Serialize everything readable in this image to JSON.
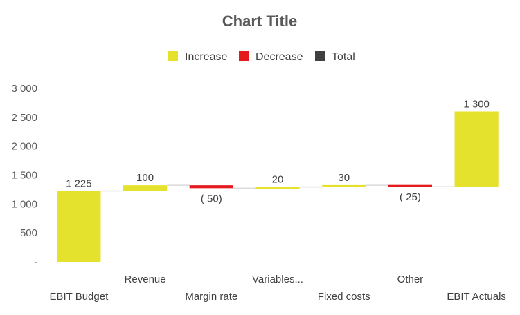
{
  "chart_data": {
    "type": "waterfall",
    "title": "Chart Title",
    "legend": [
      {
        "label": "Increase",
        "color": "#E5E22E"
      },
      {
        "label": "Decrease",
        "color": "#E41A1C"
      },
      {
        "label": "Total",
        "color": "#404040"
      }
    ],
    "legend_position": "top",
    "ylim": [
      0,
      3000
    ],
    "yticks": [
      {
        "value": 0,
        "label": "-"
      },
      {
        "value": 500,
        "label": "500"
      },
      {
        "value": 1000,
        "label": "1 000"
      },
      {
        "value": 1500,
        "label": "1 500"
      },
      {
        "value": 2000,
        "label": "2 000"
      },
      {
        "value": 2500,
        "label": "2 500"
      },
      {
        "value": 3000,
        "label": "3 000"
      }
    ],
    "grid": false,
    "categories": [
      "EBIT Budget",
      "Revenue",
      "Margin rate",
      "Variables...",
      "Fixed costs",
      "Other",
      "EBIT Actuals"
    ],
    "points": [
      {
        "start": 0,
        "end": 1225,
        "kind": "increase",
        "label": "1 225"
      },
      {
        "start": 1225,
        "end": 1325,
        "kind": "increase",
        "label": "100"
      },
      {
        "start": 1325,
        "end": 1275,
        "kind": "decrease",
        "label": "( 50)"
      },
      {
        "start": 1275,
        "end": 1295,
        "kind": "increase",
        "label": "20"
      },
      {
        "start": 1295,
        "end": 1325,
        "kind": "increase",
        "label": "30"
      },
      {
        "start": 1325,
        "end": 1300,
        "kind": "decrease",
        "label": "( 25)"
      },
      {
        "start": 1300,
        "end": 2600,
        "kind": "increase",
        "label": "1 300"
      }
    ],
    "colors": {
      "increase": "#E5E22E",
      "decrease": "#E41A1C",
      "total": "#404040",
      "connector": "#D9D9D9",
      "axis": "#D9D9D9"
    }
  }
}
